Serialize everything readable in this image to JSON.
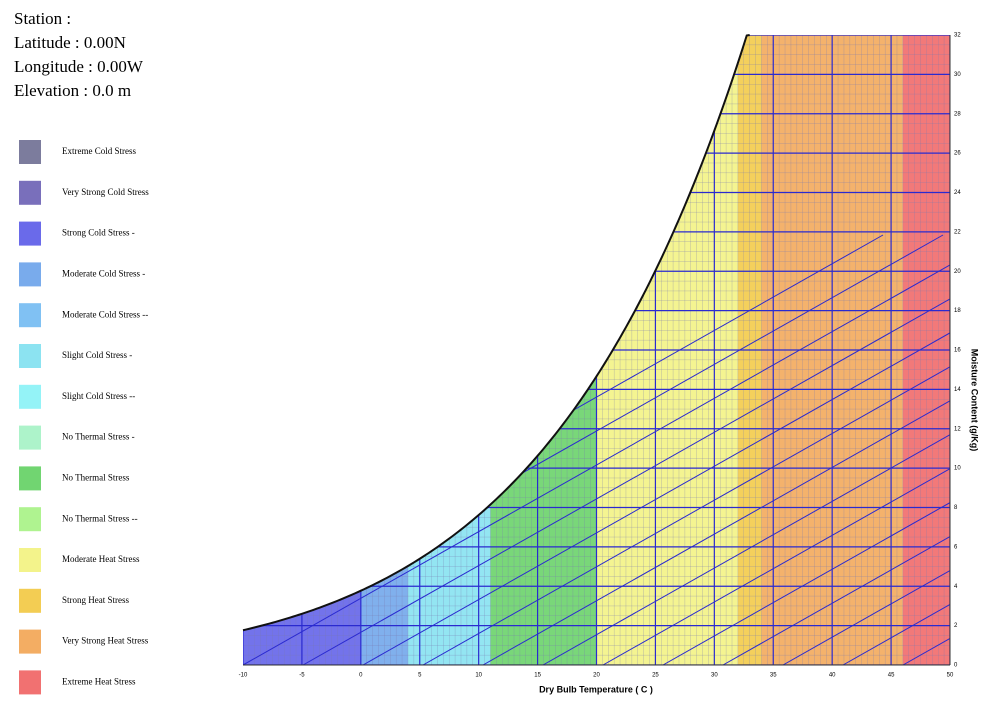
{
  "station": {
    "station": "Station :",
    "latitude": "Latitude  : 0.00N",
    "longitude": "Longitude : 0.00W",
    "elevation": "Elevation : 0.0 m"
  },
  "legend": [
    {
      "label": "Extreme Cold Stress",
      "color": "#6e6e92"
    },
    {
      "label": "Very Strong Cold Stress",
      "color": "#6a5fb4"
    },
    {
      "label": "Strong Cold Stress -",
      "color": "#5a5ae8",
      "x_range": [
        -10,
        0
      ]
    },
    {
      "label": "Moderate Cold Stress -",
      "color": "#6aa2ea",
      "x_range": [
        0,
        4
      ]
    },
    {
      "label": "Moderate Cold Stress --",
      "color": "#72baf2"
    },
    {
      "label": "Slight Cold Stress -",
      "color": "#80e0f0",
      "x_range": [
        4,
        11
      ]
    },
    {
      "label": "Slight Cold Stress --",
      "color": "#88f2f6"
    },
    {
      "label": "No Thermal Stress -",
      "color": "#a4f2c4"
    },
    {
      "label": "No Thermal Stress",
      "color": "#62d062",
      "x_range": [
        11,
        20
      ]
    },
    {
      "label": "No Thermal Stress --",
      "color": "#a6f284"
    },
    {
      "label": "Moderate Heat Stress",
      "color": "#f2f27e",
      "x_range": [
        20,
        32
      ]
    },
    {
      "label": "Strong Heat Stress",
      "color": "#f2c840",
      "x_range": [
        32,
        34
      ]
    },
    {
      "label": "Very Strong Heat Stress",
      "color": "#f2a452",
      "x_range": [
        34,
        46
      ]
    },
    {
      "label": "Extreme Heat Stress",
      "color": "#f06262",
      "x_range": [
        46,
        50
      ]
    }
  ],
  "chart_data": {
    "type": "psychrometric",
    "x_label": "Dry Bulb Temperature ( C )",
    "y_label": "Moisture Content (g/Kg)",
    "xlim": [
      -10,
      50
    ],
    "xticks": [
      -10,
      -5,
      0,
      5,
      10,
      15,
      20,
      25,
      30,
      35,
      40,
      45,
      50
    ],
    "ylim": [
      0,
      32
    ],
    "yticks": [
      0,
      2,
      4,
      6,
      8,
      10,
      12,
      14,
      16,
      18,
      20,
      22,
      24,
      26,
      28,
      30,
      32
    ],
    "grid": true
  }
}
